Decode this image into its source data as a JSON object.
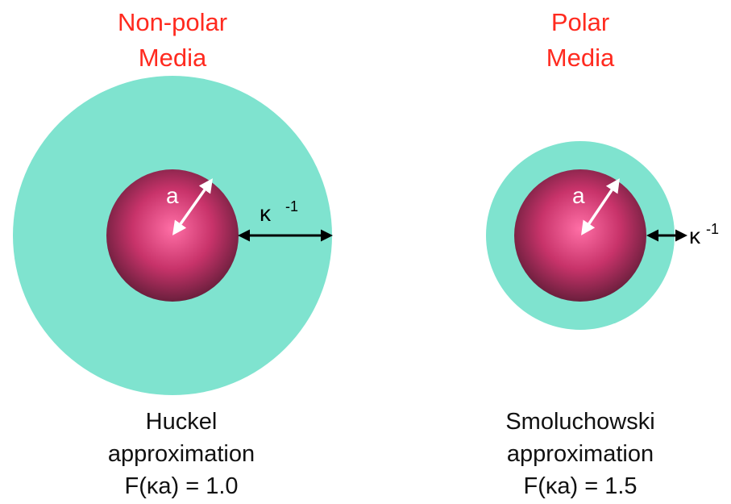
{
  "colors": {
    "title": "#ff2a1f",
    "double_layer": "#7fe3cf",
    "particle_center": "#ff6fa6",
    "particle_edge": "#6b1f3d",
    "radius_arrow": "#ffffff",
    "debye_arrow": "#000000",
    "caption": "#111111"
  },
  "panels": [
    {
      "id": "non-polar",
      "title_lines": [
        "Non-polar",
        "Media"
      ],
      "radius_label": "a",
      "debye_label": "κ",
      "debye_exponent": "-1",
      "caption_lines": [
        "Huckel",
        "approximation",
        "F(κa) = 1.0"
      ]
    },
    {
      "id": "polar",
      "title_lines": [
        "Polar",
        "Media"
      ],
      "radius_label": "a",
      "debye_label": "κ",
      "debye_exponent": "-1",
      "caption_lines": [
        "Smoluchowski",
        "approximation",
        "F(κa) = 1.5"
      ]
    }
  ]
}
